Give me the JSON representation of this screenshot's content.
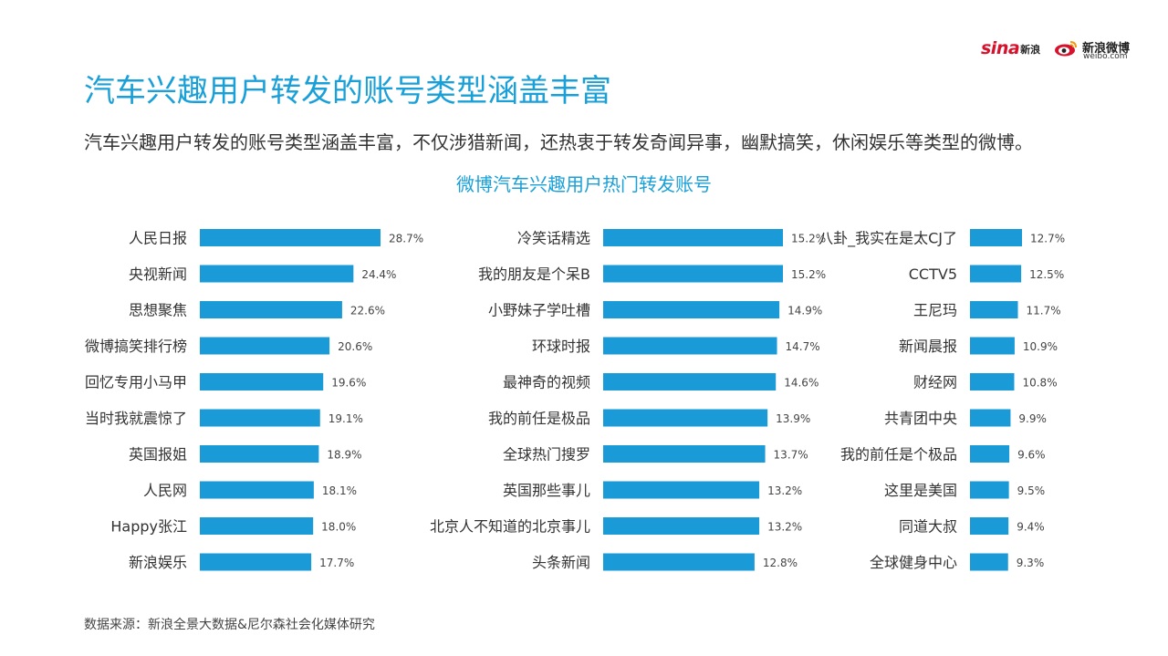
{
  "header": {
    "title": "汽车兴趣用户转发的账号类型涵盖丰富",
    "subtitle": "汽车兴趣用户转发的账号类型涵盖丰富，不仅涉猎新闻，还热衷于转发奇闻异事，幽默搞笑，休闲娱乐等类型的微博。"
  },
  "logos": {
    "sina_word": "sina",
    "sina_cn": "新浪",
    "weibo_cn": "新浪微博",
    "weibo_en": "weibo.com"
  },
  "footer": {
    "source": "数据来源：新浪全景大数据&尼尔森社会化媒体研究"
  },
  "colors": {
    "accent": "#1aa0d8",
    "bar": "#1a9ad6",
    "text": "#333333",
    "sina_red": "#d6122c"
  },
  "chart_data": {
    "type": "bar",
    "orientation": "horizontal",
    "title": "微博汽车兴趣用户热门转发账号",
    "unit": "%",
    "grid": false,
    "columns": [
      {
        "categories": [
          "人民日报",
          "央视新闻",
          "思想聚焦",
          "微博搞笑排行榜",
          "回忆专用小马甲",
          "当时我就震惊了",
          "英国报姐",
          "人民网",
          "Happy张江",
          "新浪娱乐"
        ],
        "values": [
          28.7,
          24.4,
          22.6,
          20.6,
          19.6,
          19.1,
          18.9,
          18.1,
          18.0,
          17.7
        ],
        "labels": [
          "28.7%",
          "24.4%",
          "22.6%",
          "20.6%",
          "19.6%",
          "19.1%",
          "18.9%",
          "18.1%",
          "18.0%",
          "17.7%"
        ]
      },
      {
        "categories": [
          "冷笑话精选",
          "我的朋友是个呆B",
          "小野妹子学吐槽",
          "环球时报",
          "最神奇的视频",
          "我的前任是极品",
          "全球热门搜罗",
          "英国那些事儿",
          "北京人不知道的北京事儿",
          "头条新闻"
        ],
        "values": [
          15.2,
          15.2,
          14.9,
          14.7,
          14.6,
          13.9,
          13.7,
          13.2,
          13.2,
          12.8
        ],
        "labels": [
          "15.2%",
          "15.2%",
          "14.9%",
          "14.7%",
          "14.6%",
          "13.9%",
          "13.7%",
          "13.2%",
          "13.2%",
          "12.8%"
        ]
      },
      {
        "categories": [
          "八卦_我实在是太CJ了",
          "CCTV5",
          "王尼玛",
          "新闻晨报",
          "财经网",
          "共青团中央",
          "我的前任是个极品",
          "这里是美国",
          "同道大叔",
          "全球健身中心"
        ],
        "values": [
          12.7,
          12.5,
          11.7,
          10.9,
          10.8,
          9.9,
          9.6,
          9.5,
          9.4,
          9.3
        ],
        "labels": [
          "12.7%",
          "12.5%",
          "11.7%",
          "10.9%",
          "10.8%",
          "9.9%",
          "9.6%",
          "9.5%",
          "9.4%",
          "9.3%"
        ]
      }
    ]
  }
}
